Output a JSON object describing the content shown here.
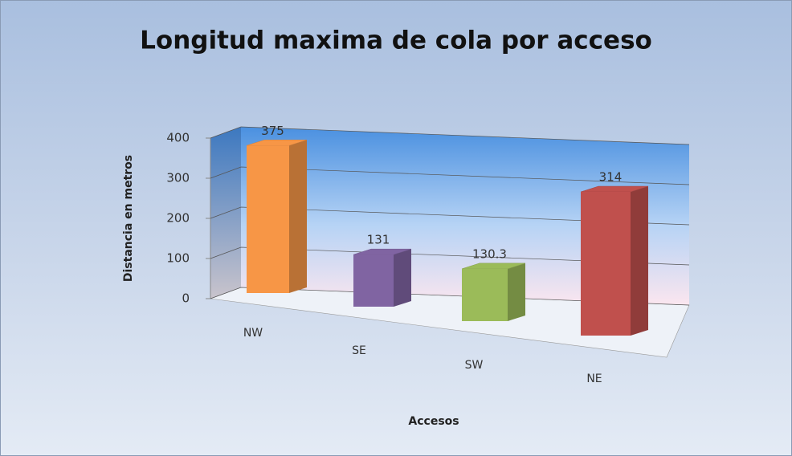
{
  "chart_data": {
    "type": "bar3d",
    "title": "Longitud maxima de cola por acceso",
    "categories": [
      "NW",
      "SE",
      "SW",
      "NE"
    ],
    "values": [
      375,
      131,
      130.3,
      314
    ],
    "colors": [
      "#f79646",
      "#8064a2",
      "#9bbb59",
      "#c0504d"
    ],
    "xlabel": "Accesos",
    "ylabel": "Distancia en metros",
    "ylim": [
      0,
      400
    ],
    "yticks": [
      0,
      100,
      200,
      300,
      400
    ],
    "grid": true
  }
}
